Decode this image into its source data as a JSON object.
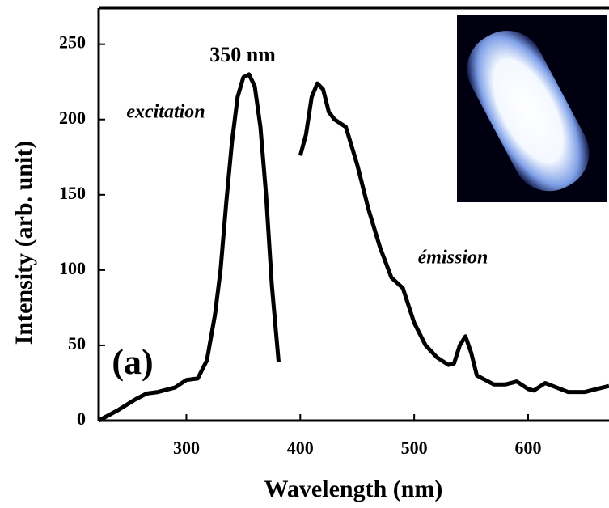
{
  "chart_data": {
    "type": "line",
    "x_label": "Wavelength (nm)",
    "y_label": "Intensity (arb. unit)",
    "xlim": [
      223,
      671
    ],
    "ylim": [
      0,
      274
    ],
    "xticks": [
      300,
      400,
      500,
      600
    ],
    "yticks": [
      0,
      50,
      100,
      150,
      200,
      250
    ],
    "annotations": [
      "350 nm",
      "(a)"
    ],
    "series": [
      {
        "name": "excitation",
        "color": "#000000",
        "x": [
          223,
          240,
          255,
          265,
          275,
          290,
          300,
          310,
          318,
          325,
          330,
          335,
          340,
          345,
          350,
          355,
          360,
          365,
          370,
          375,
          381
        ],
        "values": [
          0,
          7,
          14,
          18,
          19,
          22,
          27,
          28,
          40,
          70,
          100,
          145,
          185,
          215,
          228,
          230,
          222,
          195,
          150,
          90,
          39
        ]
      },
      {
        "name": "émission",
        "color": "#000000",
        "x": [
          400,
          405,
          410,
          415,
          420,
          425,
          430,
          440,
          450,
          460,
          470,
          480,
          490,
          500,
          510,
          520,
          530,
          535,
          540,
          545,
          550,
          555,
          570,
          580,
          590,
          600,
          605,
          615,
          625,
          635,
          650,
          660,
          671
        ],
        "values": [
          176,
          190,
          215,
          224,
          220,
          205,
          200,
          195,
          170,
          140,
          115,
          95,
          88,
          65,
          50,
          42,
          37,
          38,
          50,
          56,
          45,
          30,
          24,
          24,
          26,
          21,
          20,
          25,
          22,
          19,
          19,
          21,
          23
        ]
      }
    ]
  }
}
